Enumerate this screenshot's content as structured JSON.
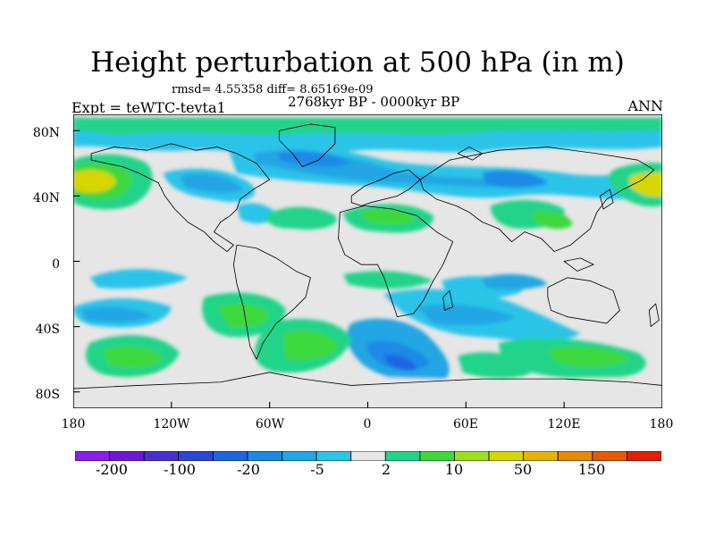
{
  "title": "Height perturbation at 500 hPa (in m)",
  "stats": "rmsd= 4.55358 diff= 8.65169e-09",
  "period": "2768kyr BP - 0000kyr BP",
  "experiment": "Expt = teWTC-tevta1",
  "season": "ANN",
  "map": {
    "projection": "cylindrical equidistant",
    "lon_range": [
      -180,
      180
    ],
    "lat_range": [
      -90,
      90
    ],
    "y_ticks": [
      "80N",
      "40N",
      "0",
      "40S",
      "80S"
    ],
    "x_ticks": [
      "180",
      "120W",
      "60W",
      "0",
      "60E",
      "120E",
      "180"
    ],
    "background_color": "#e6e6e6",
    "coastline_color": "#000000"
  },
  "colorbar": {
    "colors": [
      "#8a1fe8",
      "#6a1ad6",
      "#4a2fd0",
      "#2a47d8",
      "#1e66e0",
      "#1e8ae6",
      "#22a6e4",
      "#2cc4e8",
      "#e6e6e6",
      "#22d48a",
      "#3cd83c",
      "#9ae01e",
      "#d6d600",
      "#e6b400",
      "#e68a00",
      "#e65a00",
      "#e61e00"
    ],
    "labels": [
      "-200",
      "-100",
      "-20",
      "-5",
      "2",
      "10",
      "50",
      "150"
    ]
  }
}
